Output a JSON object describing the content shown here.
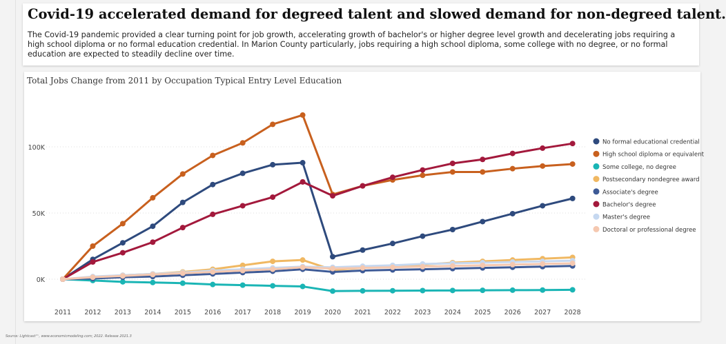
{
  "header": {
    "title": "Covid-19 accelerated demand for degreed talent and slowed demand for non-degreed talent.",
    "description": "The Covid-19 pandemic provided a clear turning point for job growth, accelerating growth of bachelor's or higher degree level growth and decelerating jobs requiring a high school diploma or no formal education credential. In Marion County particularly, jobs requiring a high school diploma, some college with no degree, or no formal education are expected to steadily decline over time."
  },
  "chart_data": {
    "type": "line",
    "title": "Total Jobs Change from 2011 by Occupation Typical Entry Level Education",
    "xlabel": "",
    "ylabel": "",
    "x": [
      "2011",
      "2012",
      "2013",
      "2014",
      "2015",
      "2016",
      "2017",
      "2018",
      "2019",
      "2020",
      "2021",
      "2022",
      "2023",
      "2024",
      "2025",
      "2026",
      "2027",
      "2028"
    ],
    "ylim": [
      -10000,
      130000
    ],
    "yticks": [
      0,
      50000,
      100000
    ],
    "ytick_labels": [
      "0K",
      "50K",
      "100K"
    ],
    "grid": "horizontal dotted",
    "legend_position": "right",
    "series": [
      {
        "name": "No formal educational credential",
        "color": "#2e4a7d",
        "values": [
          0,
          15000,
          27500,
          40000,
          58000,
          71500,
          80000,
          86500,
          88000,
          17000,
          22000,
          27000,
          32500,
          37500,
          43500,
          49500,
          55500,
          61000
        ]
      },
      {
        "name": "High school diploma or equivalent",
        "color": "#c8601e",
        "values": [
          0,
          25000,
          42000,
          61500,
          79500,
          93500,
          103000,
          117000,
          124000,
          64000,
          70500,
          75000,
          78500,
          81000,
          81000,
          83500,
          85500,
          87000
        ]
      },
      {
        "name": "Some college, no degree",
        "color": "#1ab5b5",
        "values": [
          0,
          -1000,
          -2000,
          -2500,
          -3000,
          -4000,
          -4500,
          -5000,
          -5500,
          -9000,
          -8800,
          -8700,
          -8600,
          -8500,
          -8400,
          -8300,
          -8200,
          -8000
        ]
      },
      {
        "name": "Postsecondary nondegree award",
        "color": "#f0b862",
        "values": [
          0,
          1500,
          3000,
          4000,
          5500,
          7500,
          10500,
          13500,
          14500,
          7000,
          8500,
          9500,
          11000,
          12500,
          13500,
          14500,
          15500,
          16500
        ]
      },
      {
        "name": "Associate's degree",
        "color": "#3d5a96",
        "values": [
          0,
          500,
          1500,
          2000,
          3000,
          4000,
          5000,
          6000,
          7500,
          5500,
          6500,
          7000,
          7500,
          8000,
          8500,
          9000,
          9500,
          10000
        ]
      },
      {
        "name": "Bachelor's degree",
        "color": "#a3193c",
        "values": [
          0,
          13000,
          20000,
          28000,
          39000,
          49000,
          55500,
          62000,
          73500,
          63000,
          70500,
          77000,
          82500,
          87500,
          90500,
          95000,
          99000,
          102500
        ]
      },
      {
        "name": "Master's degree",
        "color": "#c6d8f0",
        "values": [
          0,
          2000,
          3000,
          4000,
          5000,
          6500,
          7500,
          8500,
          9500,
          9000,
          9800,
          10500,
          11500,
          12000,
          12500,
          13000,
          13500,
          14000
        ]
      },
      {
        "name": "Doctoral or professional degree",
        "color": "#f5c8b0",
        "values": [
          0,
          1500,
          2500,
          3500,
          4500,
          5500,
          6500,
          7500,
          9000,
          8000,
          8500,
          9000,
          9500,
          10000,
          10500,
          11000,
          11500,
          12000
        ]
      }
    ]
  },
  "footer": {
    "source": "Source: Lightcast™, www.economicmodeling.com; 2022. Release 2021.3"
  }
}
